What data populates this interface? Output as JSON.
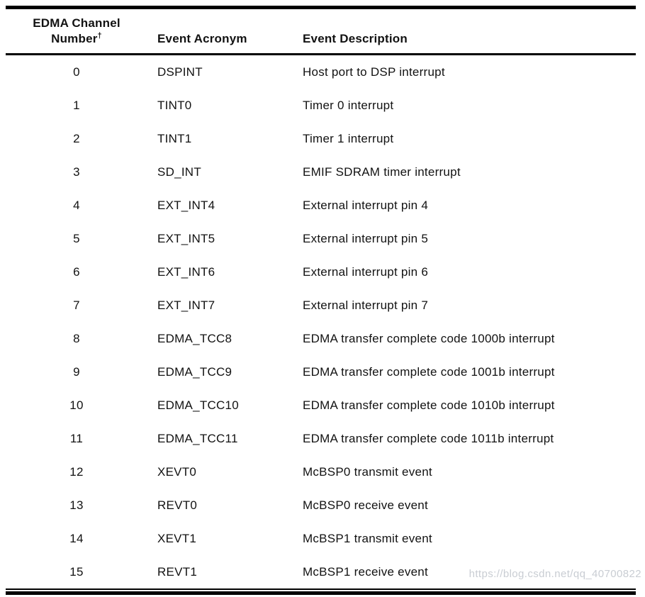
{
  "header": {
    "col1_line1": "EDMA Channel",
    "col1_line2": "Number",
    "col1_footnote_marker": "†",
    "col2_label": "Event Acronym",
    "col3_label": "Event Description"
  },
  "rows": [
    {
      "channel": "0",
      "acronym": "DSPINT",
      "description": "Host port to DSP interrupt"
    },
    {
      "channel": "1",
      "acronym": "TINT0",
      "description": "Timer 0 interrupt"
    },
    {
      "channel": "2",
      "acronym": "TINT1",
      "description": "Timer 1 interrupt"
    },
    {
      "channel": "3",
      "acronym": "SD_INT",
      "description": "EMIF SDRAM timer interrupt"
    },
    {
      "channel": "4",
      "acronym": "EXT_INT4",
      "description": "External interrupt pin 4"
    },
    {
      "channel": "5",
      "acronym": "EXT_INT5",
      "description": "External interrupt pin 5"
    },
    {
      "channel": "6",
      "acronym": "EXT_INT6",
      "description": "External interrupt pin 6"
    },
    {
      "channel": "7",
      "acronym": "EXT_INT7",
      "description": "External interrupt pin 7"
    },
    {
      "channel": "8",
      "acronym": "EDMA_TCC8",
      "description": "EDMA transfer complete code 1000b interrupt"
    },
    {
      "channel": "9",
      "acronym": "EDMA_TCC9",
      "description": "EDMA transfer complete code 1001b interrupt"
    },
    {
      "channel": "10",
      "acronym": "EDMA_TCC10",
      "description": "EDMA transfer complete code 1010b interrupt"
    },
    {
      "channel": "11",
      "acronym": "EDMA_TCC11",
      "description": "EDMA transfer complete code 1011b interrupt"
    },
    {
      "channel": "12",
      "acronym": "XEVT0",
      "description": "McBSP0 transmit event"
    },
    {
      "channel": "13",
      "acronym": "REVT0",
      "description": "McBSP0 receive event"
    },
    {
      "channel": "14",
      "acronym": "XEVT1",
      "description": "McBSP1 transmit event"
    },
    {
      "channel": "15",
      "acronym": "REVT1",
      "description": "McBSP1 receive event"
    }
  ],
  "watermark": {
    "text": "https://blog.csdn.net/qq_40700822",
    "color": "#c9cdd3"
  },
  "colors": {
    "rule": "#000000",
    "text": "#121212",
    "background": "#ffffff"
  }
}
